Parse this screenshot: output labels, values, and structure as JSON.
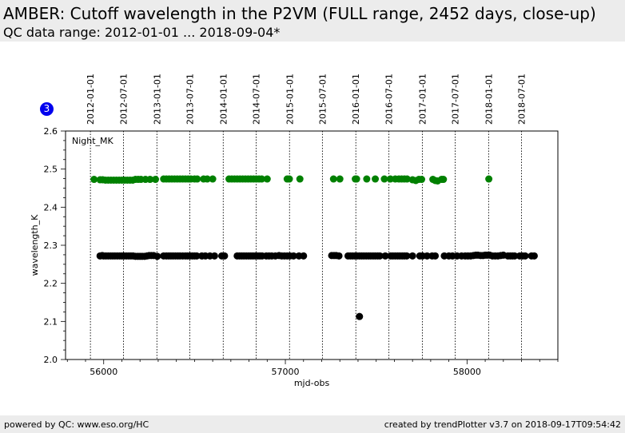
{
  "header": {
    "title": "AMBER: Cutoff wavelength in the P2VM (FULL range, 2452 days, close-up)",
    "subtitle": "QC data range: 2012-01-01 ... 2018-09-04*"
  },
  "badge": {
    "label": "3"
  },
  "footer": {
    "left": "powered by QC: www.eso.org/HC",
    "right": "created by trendPlotter v3.7 on 2018-09-17T09:54:42"
  },
  "colors": {
    "series_green": "#008000",
    "series_black": "#000000",
    "badge": "#0000ee"
  },
  "chart_data": {
    "type": "scatter",
    "annotation": "Night_MK",
    "xlabel": "mjd-obs",
    "ylabel": "wavelength_K",
    "xlim": [
      55790,
      58500
    ],
    "ylim": [
      2.0,
      2.6
    ],
    "grid": false,
    "x_ticks": [
      "56000",
      "57000",
      "58000"
    ],
    "y_ticks": [
      "2.0",
      "2.1",
      "2.2",
      "2.3",
      "2.4",
      "2.5",
      "2.6"
    ],
    "date_markers": [
      {
        "label": "2012-01-01",
        "mjd": 55927
      },
      {
        "label": "2012-07-01",
        "mjd": 56109
      },
      {
        "label": "2013-01-01",
        "mjd": 56293
      },
      {
        "label": "2013-07-01",
        "mjd": 56474
      },
      {
        "label": "2014-01-01",
        "mjd": 56658
      },
      {
        "label": "2014-07-01",
        "mjd": 56839
      },
      {
        "label": "2015-01-01",
        "mjd": 57023
      },
      {
        "label": "2015-07-01",
        "mjd": 57204
      },
      {
        "label": "2016-01-01",
        "mjd": 57388
      },
      {
        "label": "2016-07-01",
        "mjd": 57570
      },
      {
        "label": "2017-01-01",
        "mjd": 57754
      },
      {
        "label": "2017-07-01",
        "mjd": 57935
      },
      {
        "label": "2018-01-01",
        "mjd": 58119
      },
      {
        "label": "2018-07-01",
        "mjd": 58300
      }
    ],
    "series": [
      {
        "color": "#008000",
        "points": [
          [
            55947,
            2.473
          ],
          [
            55980,
            2.472
          ],
          [
            55995,
            2.472
          ],
          [
            56010,
            2.471
          ],
          [
            56025,
            2.471
          ],
          [
            56040,
            2.471
          ],
          [
            56055,
            2.471
          ],
          [
            56070,
            2.471
          ],
          [
            56085,
            2.471
          ],
          [
            56100,
            2.471
          ],
          [
            56115,
            2.471
          ],
          [
            56130,
            2.471
          ],
          [
            56145,
            2.471
          ],
          [
            56160,
            2.471
          ],
          [
            56175,
            2.473
          ],
          [
            56190,
            2.473
          ],
          [
            56205,
            2.473
          ],
          [
            56230,
            2.473
          ],
          [
            56255,
            2.473
          ],
          [
            56285,
            2.473
          ],
          [
            56330,
            2.474
          ],
          [
            56345,
            2.474
          ],
          [
            56360,
            2.474
          ],
          [
            56375,
            2.474
          ],
          [
            56390,
            2.474
          ],
          [
            56405,
            2.474
          ],
          [
            56420,
            2.474
          ],
          [
            56435,
            2.474
          ],
          [
            56450,
            2.474
          ],
          [
            56465,
            2.474
          ],
          [
            56480,
            2.474
          ],
          [
            56500,
            2.474
          ],
          [
            56515,
            2.474
          ],
          [
            56550,
            2.474
          ],
          [
            56570,
            2.474
          ],
          [
            56600,
            2.474
          ],
          [
            56690,
            2.474
          ],
          [
            56705,
            2.474
          ],
          [
            56720,
            2.474
          ],
          [
            56735,
            2.474
          ],
          [
            56750,
            2.474
          ],
          [
            56765,
            2.474
          ],
          [
            56780,
            2.474
          ],
          [
            56795,
            2.474
          ],
          [
            56810,
            2.474
          ],
          [
            56825,
            2.474
          ],
          [
            56840,
            2.474
          ],
          [
            56855,
            2.474
          ],
          [
            56870,
            2.474
          ],
          [
            56900,
            2.474
          ],
          [
            57010,
            2.474
          ],
          [
            57022,
            2.474
          ],
          [
            57080,
            2.474
          ],
          [
            57265,
            2.474
          ],
          [
            57300,
            2.474
          ],
          [
            57385,
            2.474
          ],
          [
            57392,
            2.474
          ],
          [
            57448,
            2.474
          ],
          [
            57495,
            2.474
          ],
          [
            57545,
            2.474
          ],
          [
            57578,
            2.474
          ],
          [
            57605,
            2.474
          ],
          [
            57625,
            2.474
          ],
          [
            57640,
            2.474
          ],
          [
            57655,
            2.474
          ],
          [
            57670,
            2.474
          ],
          [
            57700,
            2.472
          ],
          [
            57718,
            2.47
          ],
          [
            57735,
            2.473
          ],
          [
            57750,
            2.473
          ],
          [
            57812,
            2.473
          ],
          [
            57825,
            2.47
          ],
          [
            57838,
            2.469
          ],
          [
            57860,
            2.473
          ],
          [
            57870,
            2.473
          ],
          [
            58120,
            2.474
          ]
        ]
      },
      {
        "color": "#000000",
        "points": [
          [
            55980,
            2.272
          ],
          [
            55992,
            2.273
          ],
          [
            56000,
            2.272
          ],
          [
            56012,
            2.272
          ],
          [
            56025,
            2.272
          ],
          [
            56038,
            2.272
          ],
          [
            56050,
            2.272
          ],
          [
            56062,
            2.272
          ],
          [
            56075,
            2.272
          ],
          [
            56088,
            2.272
          ],
          [
            56100,
            2.272
          ],
          [
            56112,
            2.272
          ],
          [
            56125,
            2.272
          ],
          [
            56138,
            2.272
          ],
          [
            56150,
            2.272
          ],
          [
            56162,
            2.272
          ],
          [
            56175,
            2.271
          ],
          [
            56188,
            2.271
          ],
          [
            56200,
            2.271
          ],
          [
            56212,
            2.271
          ],
          [
            56225,
            2.271
          ],
          [
            56238,
            2.272
          ],
          [
            56250,
            2.273
          ],
          [
            56262,
            2.273
          ],
          [
            56275,
            2.273
          ],
          [
            56295,
            2.271
          ],
          [
            56330,
            2.272
          ],
          [
            56345,
            2.272
          ],
          [
            56358,
            2.272
          ],
          [
            56370,
            2.272
          ],
          [
            56382,
            2.272
          ],
          [
            56395,
            2.272
          ],
          [
            56408,
            2.272
          ],
          [
            56420,
            2.272
          ],
          [
            56435,
            2.272
          ],
          [
            56450,
            2.272
          ],
          [
            56462,
            2.272
          ],
          [
            56475,
            2.272
          ],
          [
            56488,
            2.272
          ],
          [
            56500,
            2.272
          ],
          [
            56512,
            2.272
          ],
          [
            56540,
            2.272
          ],
          [
            56560,
            2.272
          ],
          [
            56585,
            2.272
          ],
          [
            56610,
            2.272
          ],
          [
            56650,
            2.272
          ],
          [
            56665,
            2.272
          ],
          [
            56735,
            2.272
          ],
          [
            56748,
            2.272
          ],
          [
            56760,
            2.272
          ],
          [
            56772,
            2.272
          ],
          [
            56785,
            2.272
          ],
          [
            56798,
            2.272
          ],
          [
            56810,
            2.272
          ],
          [
            56822,
            2.272
          ],
          [
            56835,
            2.272
          ],
          [
            56848,
            2.272
          ],
          [
            56860,
            2.272
          ],
          [
            56872,
            2.272
          ],
          [
            56895,
            2.272
          ],
          [
            56910,
            2.272
          ],
          [
            56925,
            2.272
          ],
          [
            56945,
            2.272
          ],
          [
            56965,
            2.273
          ],
          [
            56980,
            2.272
          ],
          [
            56995,
            2.272
          ],
          [
            57010,
            2.272
          ],
          [
            57025,
            2.272
          ],
          [
            57045,
            2.272
          ],
          [
            57075,
            2.272
          ],
          [
            57100,
            2.272
          ],
          [
            57255,
            2.273
          ],
          [
            57268,
            2.273
          ],
          [
            57280,
            2.273
          ],
          [
            57295,
            2.272
          ],
          [
            57345,
            2.272
          ],
          [
            57358,
            2.272
          ],
          [
            57370,
            2.272
          ],
          [
            57383,
            2.272
          ],
          [
            57395,
            2.272
          ],
          [
            57408,
            2.272
          ],
          [
            57420,
            2.272
          ],
          [
            57432,
            2.272
          ],
          [
            57445,
            2.272
          ],
          [
            57458,
            2.272
          ],
          [
            57470,
            2.272
          ],
          [
            57483,
            2.272
          ],
          [
            57495,
            2.272
          ],
          [
            57508,
            2.272
          ],
          [
            57520,
            2.272
          ],
          [
            57550,
            2.272
          ],
          [
            57580,
            2.272
          ],
          [
            57592,
            2.272
          ],
          [
            57605,
            2.272
          ],
          [
            57618,
            2.272
          ],
          [
            57630,
            2.272
          ],
          [
            57643,
            2.272
          ],
          [
            57655,
            2.272
          ],
          [
            57668,
            2.272
          ],
          [
            57700,
            2.272
          ],
          [
            57740,
            2.272
          ],
          [
            57755,
            2.272
          ],
          [
            57780,
            2.272
          ],
          [
            57808,
            2.272
          ],
          [
            57825,
            2.272
          ],
          [
            57875,
            2.272
          ],
          [
            57900,
            2.272
          ],
          [
            57920,
            2.272
          ],
          [
            57945,
            2.272
          ],
          [
            57970,
            2.272
          ],
          [
            57990,
            2.272
          ],
          [
            58005,
            2.272
          ],
          [
            58020,
            2.272
          ],
          [
            58035,
            2.273
          ],
          [
            58048,
            2.274
          ],
          [
            58060,
            2.274
          ],
          [
            58075,
            2.273
          ],
          [
            58088,
            2.273
          ],
          [
            58100,
            2.274
          ],
          [
            58112,
            2.274
          ],
          [
            58125,
            2.274
          ],
          [
            58140,
            2.272
          ],
          [
            58155,
            2.272
          ],
          [
            58170,
            2.272
          ],
          [
            58185,
            2.273
          ],
          [
            58200,
            2.274
          ],
          [
            58225,
            2.272
          ],
          [
            58238,
            2.272
          ],
          [
            58250,
            2.272
          ],
          [
            58262,
            2.272
          ],
          [
            58290,
            2.272
          ],
          [
            58305,
            2.272
          ],
          [
            58320,
            2.272
          ],
          [
            58355,
            2.272
          ],
          [
            58370,
            2.272
          ],
          [
            57408,
            2.113
          ]
        ]
      }
    ]
  }
}
